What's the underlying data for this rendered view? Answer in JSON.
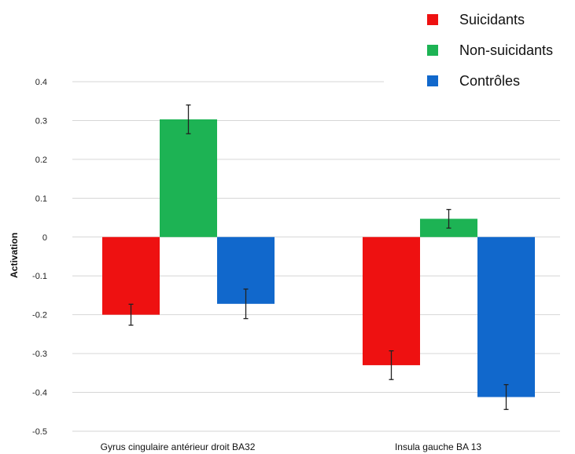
{
  "chart_data": {
    "type": "bar",
    "ylabel": "Activation",
    "ylim": [
      -0.5,
      0.4
    ],
    "yticks": [
      0.4,
      0.3,
      0.2,
      0.1,
      0,
      -0.1,
      -0.2,
      -0.3,
      -0.4,
      -0.5
    ],
    "ytick_labels": [
      "0.4",
      "0.3",
      "0.2",
      "0.1",
      "0",
      "-0.1",
      "-0.2",
      "-0.3",
      "-0.4",
      "-0.5"
    ],
    "grid": true,
    "legend_position": "top-right",
    "categories": [
      "Gyrus cingulaire antérieur droit BA32",
      "Insula gauche BA 13"
    ],
    "series": [
      {
        "name": "Suicidants",
        "color": "#ee1111",
        "values": [
          -0.2,
          -0.33
        ],
        "errors": [
          0.027,
          0.037
        ]
      },
      {
        "name": "Non-suicidants",
        "color": "#1db354",
        "values": [
          0.303,
          0.047
        ],
        "errors": [
          0.037,
          0.024
        ]
      },
      {
        "name": "Contrôles",
        "color": "#1168cc",
        "values": [
          -0.172,
          -0.412
        ],
        "errors": [
          0.038,
          0.032
        ]
      }
    ]
  }
}
